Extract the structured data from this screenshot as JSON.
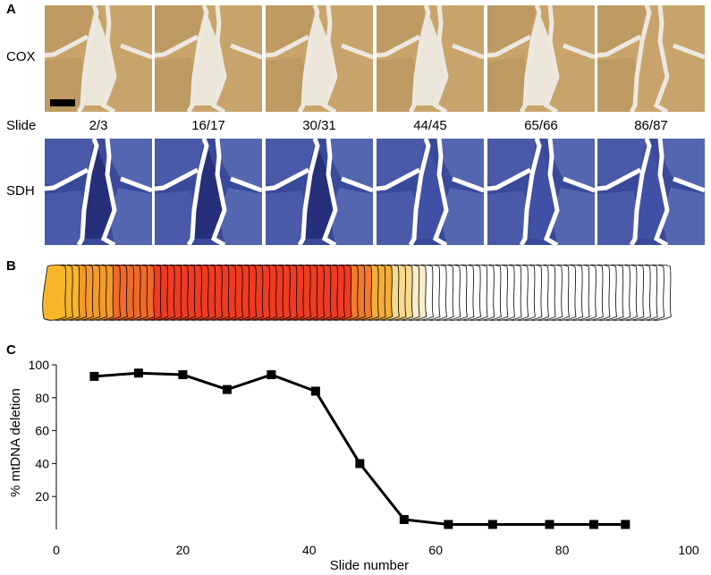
{
  "panels": {
    "a": "A",
    "b": "B",
    "c": "C"
  },
  "rows": {
    "cox": "COX",
    "sdh": "SDH"
  },
  "slide_header": "Slide",
  "slides": [
    "2/3",
    "16/17",
    "30/31",
    "44/45",
    "65/66",
    "86/87"
  ],
  "colors": {
    "cox": "#c9a46a",
    "sdh": "#3a4a9a",
    "fiber_edge": "#000000"
  },
  "chart_data": {
    "type": "line",
    "xlabel": "Slide number",
    "ylabel": "% mtDNA deletion",
    "xlim": [
      0,
      100
    ],
    "ylim": [
      0,
      100
    ],
    "xticks": [
      0,
      20,
      40,
      60,
      80,
      100
    ],
    "yticks": [
      20,
      40,
      60,
      80,
      100
    ],
    "series": [
      {
        "marker": "square",
        "x": [
          6,
          13,
          20,
          27,
          34,
          41,
          48,
          55,
          62,
          69,
          78,
          85,
          90
        ],
        "y": [
          93,
          95,
          94,
          85,
          94,
          84,
          40,
          6,
          3,
          3,
          3,
          3,
          3
        ]
      }
    ],
    "grid": false
  }
}
